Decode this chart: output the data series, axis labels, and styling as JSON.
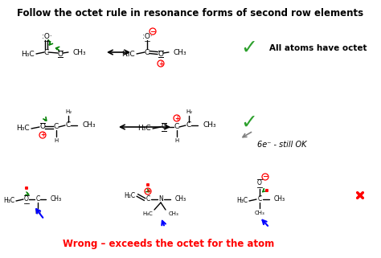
{
  "title": "Follow the octet rule in resonance forms of second row elements",
  "title_fontsize": 8.5,
  "title_fontweight": "bold",
  "bg_color": "#ffffff",
  "wrong_label": "Wrong – exceeds the octet for the atom",
  "all_atoms_label": "All atoms have octet",
  "still_ok_label": "6e⁻ - still OK",
  "fig_width": 4.74,
  "fig_height": 3.21,
  "dpi": 100
}
